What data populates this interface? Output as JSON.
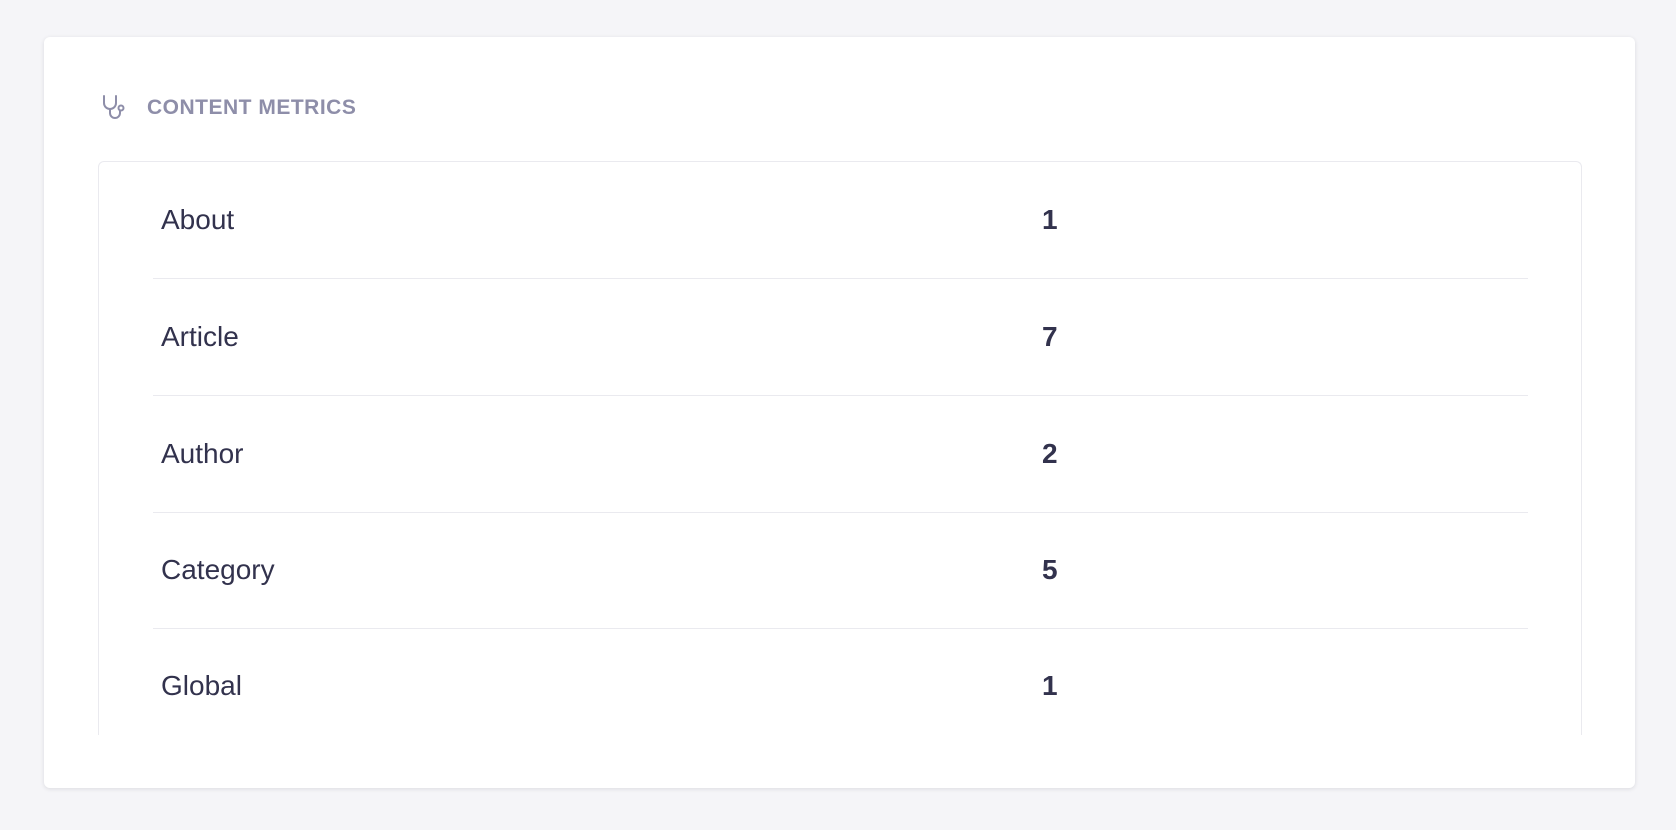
{
  "section": {
    "title": "CONTENT METRICS",
    "icon": "stethoscope-icon"
  },
  "metrics": [
    {
      "label": "About",
      "value": "1"
    },
    {
      "label": "Article",
      "value": "7"
    },
    {
      "label": "Author",
      "value": "2"
    },
    {
      "label": "Category",
      "value": "5"
    },
    {
      "label": "Global",
      "value": "1"
    }
  ]
}
